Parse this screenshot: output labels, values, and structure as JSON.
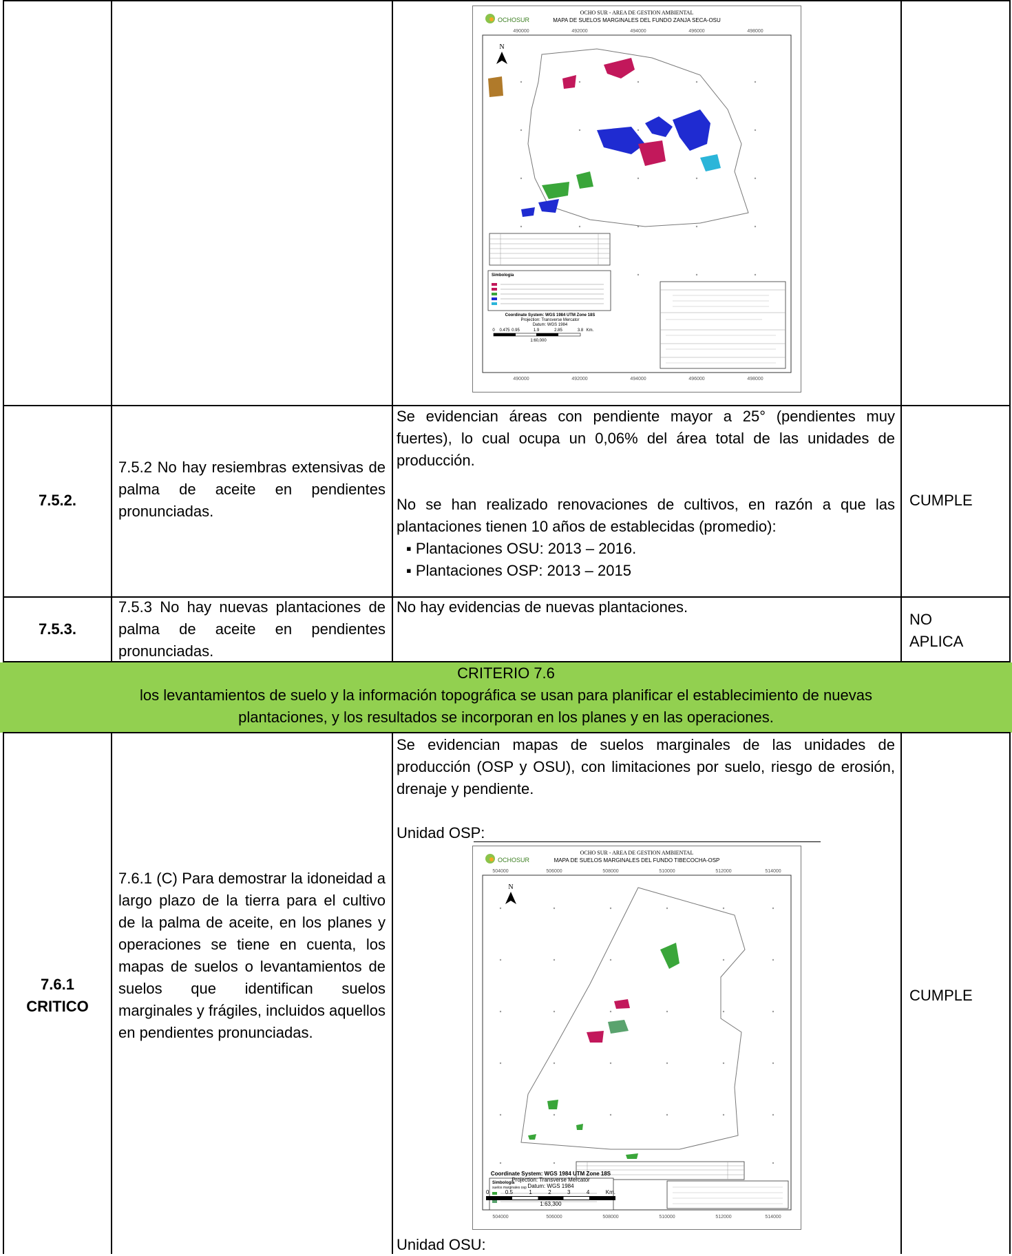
{
  "map1": {
    "company": "OCHO SUR - AREA DE GESTION AMBIENTAL",
    "logo": "OCHOSUR",
    "title": "MAPA DE SUELOS MARGINALES DEL FUNDO ZANJA SECA-OSU",
    "xticks": [
      "490000",
      "492000",
      "494000",
      "496000",
      "498000"
    ],
    "north": "N",
    "legend_title": "Simbologia",
    "scale": "1:60,000",
    "coord_system": "Coordinate System: WGS 1984 UTM Zone 18S",
    "projection": "Projection: Transverse Mercator",
    "datum": "Datum: WGS 1984",
    "scale_ticks": [
      "0",
      "0.475",
      "0.95",
      "1.9",
      "2.85",
      "3.8"
    ],
    "scale_unit": "Km."
  },
  "row752": {
    "code": "7.5.2.",
    "indicator": "7.5.2 No hay resiembras extensivas de palma de aceite en pendientes pronunciadas.",
    "evidence_p1": "Se evidencian áreas con pendiente mayor a 25° (pendientes muy fuertes), lo cual ocupa un 0,06% del área total de las unidades de producción.",
    "evidence_p2": "No se han realizado renovaciones de cultivos, en razón a que las plantaciones tienen 10 años de establecidas (promedio):",
    "bullets": [
      "Plantaciones OSU: 2013 – 2016.",
      "Plantaciones OSP: 2013 – 2015"
    ],
    "status": "CUMPLE"
  },
  "row753": {
    "code": "7.5.3.",
    "indicator": "7.5.3 No hay nuevas plantaciones de palma de aceite en pendientes pronunciadas.",
    "evidence": "No hay evidencias de nuevas plantaciones.",
    "status_l1": "NO",
    "status_l2": "APLICA"
  },
  "criterio": {
    "title": "CRITERIO 7.6",
    "text_l1": "los levantamientos de suelo y la información topográfica se usan para planificar el establecimiento de nuevas",
    "text_l2": "plantaciones, y los resultados se incorporan en los planes y en las operaciones."
  },
  "row761": {
    "code_l1": "7.6.1",
    "code_l2": "CRITICO",
    "indicator": "7.6.1 (C) Para demostrar la idoneidad a largo plazo de la tierra para el cultivo de la palma de aceite, en los planes y operaciones se tiene en cuenta, los mapas de suelos o levantamientos de suelos que identifican suelos marginales y frágiles, incluidos aquellos en pendientes pronunciadas.",
    "evidence": "Se evidencian mapas de suelos marginales de las unidades de producción (OSP y OSU), con limitaciones por suelo, riesgo de erosión, drenaje y pendiente.",
    "unit_osp": "Unidad OSP:",
    "unit_osu": "Unidad OSU:",
    "status": "CUMPLE"
  },
  "map2": {
    "company": "OCHO SUR - AREA DE GESTION AMBIENTAL",
    "logo": "OCHOSUR",
    "title": "MAPA DE SUELOS MARGINALES DEL FUNDO TIBECOCHA-OSP",
    "xticks": [
      "504000",
      "506000",
      "508000",
      "510000",
      "512000",
      "514000"
    ],
    "north": "N",
    "legend_title": "Simbologia",
    "legend_sub": "suelos marginales osp",
    "scale": "1:63,300",
    "coord_system": "Coordinate System: WGS 1984 UTM Zone 18S",
    "projection": "Projection: Transverse Mercator",
    "datum": "Datum: WGS 1984",
    "scale_ticks": [
      "0",
      "0.5",
      "1",
      "2",
      "3",
      "4"
    ],
    "scale_unit": "Km."
  },
  "colors": {
    "green_band": "#92d050",
    "magenta": "#c2185b",
    "blue": "#1f2bd1",
    "green": "#3aa63a",
    "brown": "#b07a2a",
    "cyan": "#2bb5d9"
  }
}
